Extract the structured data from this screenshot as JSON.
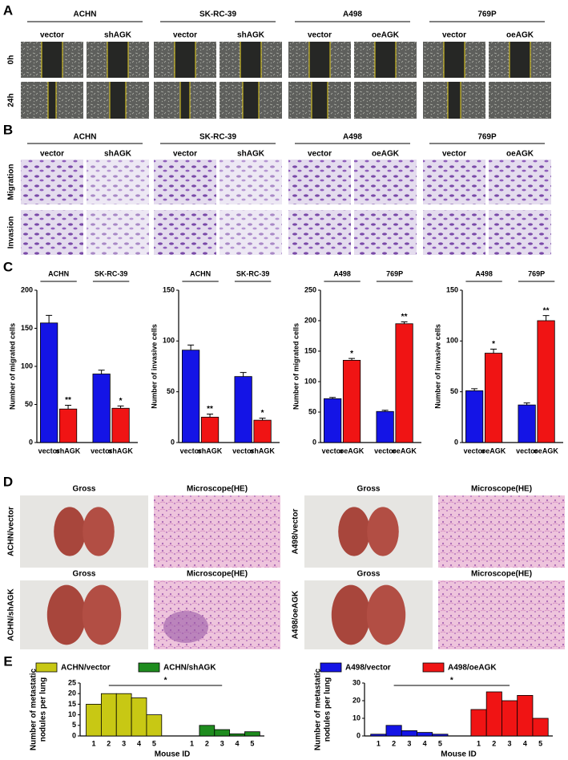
{
  "panel_a": {
    "label": "A",
    "groups": [
      {
        "name": "ACHN",
        "conditions": [
          "vector",
          "shAGK"
        ]
      },
      {
        "name": "SK-RC-39",
        "conditions": [
          "vector",
          "shAGK"
        ]
      },
      {
        "name": "A498",
        "conditions": [
          "vector",
          "oeAGK"
        ]
      },
      {
        "name": "769P",
        "conditions": [
          "vector",
          "oeAGK"
        ]
      }
    ],
    "rows": [
      "0h",
      "24h"
    ]
  },
  "panel_b": {
    "label": "B",
    "groups": [
      {
        "name": "ACHN",
        "conditions": [
          "vector",
          "shAGK"
        ]
      },
      {
        "name": "SK-RC-39",
        "conditions": [
          "vector",
          "shAGK"
        ]
      },
      {
        "name": "A498",
        "conditions": [
          "vector",
          "oeAGK"
        ]
      },
      {
        "name": "769P",
        "conditions": [
          "vector",
          "oeAGK"
        ]
      }
    ],
    "rows": [
      "Migration",
      "Invasion"
    ]
  },
  "panel_c": {
    "label": "C"
  },
  "panel_d": {
    "label": "D",
    "samples": [
      {
        "name": "ACHN/vector",
        "gross": "Gross",
        "micro": "Microscope(HE)"
      },
      {
        "name": "ACHN/shAGK",
        "gross": "Gross",
        "micro": "Microscope(HE)"
      },
      {
        "name": "A498/vector",
        "gross": "Gross",
        "micro": "Microscope(HE)"
      },
      {
        "name": "A498/oeAGK",
        "gross": "Gross",
        "micro": "Microscope(HE)"
      }
    ]
  },
  "panel_e": {
    "label": "E"
  },
  "chart_data": [
    {
      "type": "bar",
      "ylabel": "Number of migrated cells",
      "groups": [
        "ACHN",
        "SK-RC-39"
      ],
      "categories": [
        "vector",
        "shAGK",
        "vector",
        "shAGK"
      ],
      "values": [
        157,
        44,
        90,
        45
      ],
      "errors": [
        10,
        5,
        5,
        3
      ],
      "colors": [
        "#1414e6",
        "#f01414",
        "#1414e6",
        "#f01414"
      ],
      "annotations": [
        null,
        "**",
        null,
        "*"
      ],
      "ylim": [
        0,
        200
      ],
      "yticks": [
        0,
        50,
        100,
        150,
        200
      ]
    },
    {
      "type": "bar",
      "ylabel": "Number of invasive cells",
      "groups": [
        "ACHN",
        "SK-RC-39"
      ],
      "categories": [
        "vector",
        "shAGK",
        "vector",
        "shAGK"
      ],
      "values": [
        91,
        25,
        65,
        22
      ],
      "errors": [
        5,
        3,
        4,
        2
      ],
      "colors": [
        "#1414e6",
        "#f01414",
        "#1414e6",
        "#f01414"
      ],
      "annotations": [
        null,
        "**",
        null,
        "*"
      ],
      "ylim": [
        0,
        150
      ],
      "yticks": [
        0,
        50,
        100,
        150
      ]
    },
    {
      "type": "bar",
      "ylabel": "Number of migrated cells",
      "groups": [
        "A498",
        "769P"
      ],
      "categories": [
        "vector",
        "oeAGK",
        "vector",
        "oeAGK"
      ],
      "values": [
        72,
        135,
        51,
        195
      ],
      "errors": [
        2,
        3,
        2,
        3
      ],
      "colors": [
        "#1414e6",
        "#f01414",
        "#1414e6",
        "#f01414"
      ],
      "annotations": [
        null,
        "*",
        null,
        "**"
      ],
      "ylim": [
        0,
        250
      ],
      "yticks": [
        0,
        50,
        100,
        150,
        200,
        250
      ]
    },
    {
      "type": "bar",
      "ylabel": "Number of invasive cells",
      "groups": [
        "A498",
        "769P"
      ],
      "categories": [
        "vector",
        "oeAGK",
        "vector",
        "oeAGK"
      ],
      "values": [
        51,
        88,
        37,
        120
      ],
      "errors": [
        2,
        4,
        2,
        5
      ],
      "colors": [
        "#1414e6",
        "#f01414",
        "#1414e6",
        "#f01414"
      ],
      "annotations": [
        null,
        "*",
        null,
        "**"
      ],
      "ylim": [
        0,
        150
      ],
      "yticks": [
        0,
        50,
        100,
        150
      ]
    },
    {
      "type": "bar",
      "ylabel": [
        "Number of metastatic",
        "nodules per lung"
      ],
      "xlabel": "Mouse ID",
      "categories": [
        "1",
        "2",
        "3",
        "4",
        "5",
        "1",
        "2",
        "3",
        "4",
        "5"
      ],
      "series": [
        {
          "name": "ACHN/vector",
          "color": "#c8c814",
          "values": [
            15,
            20,
            20,
            18,
            10,
            null,
            null,
            null,
            null,
            null
          ]
        },
        {
          "name": "ACHN/shAGK",
          "color": "#1e8c1e",
          "values": [
            null,
            null,
            null,
            null,
            null,
            0,
            5,
            3,
            1,
            2
          ]
        }
      ],
      "annotation": "*",
      "ylim": [
        0,
        25
      ],
      "yticks": [
        0,
        5,
        10,
        15,
        20,
        25
      ]
    },
    {
      "type": "bar",
      "ylabel": [
        "Number of metastatic",
        "nodules per lung"
      ],
      "xlabel": "Mouse ID",
      "categories": [
        "1",
        "2",
        "3",
        "4",
        "5",
        "1",
        "2",
        "3",
        "4",
        "5"
      ],
      "series": [
        {
          "name": "A498/vector",
          "color": "#1414e6",
          "values": [
            1,
            6,
            3,
            2,
            1,
            null,
            null,
            null,
            null,
            null
          ]
        },
        {
          "name": "A498/oeAGK",
          "color": "#f01414",
          "values": [
            null,
            null,
            null,
            null,
            null,
            15,
            25,
            20,
            23,
            10
          ]
        }
      ],
      "annotation": "*",
      "ylim": [
        0,
        30
      ],
      "yticks": [
        0,
        10,
        20,
        30
      ]
    }
  ]
}
